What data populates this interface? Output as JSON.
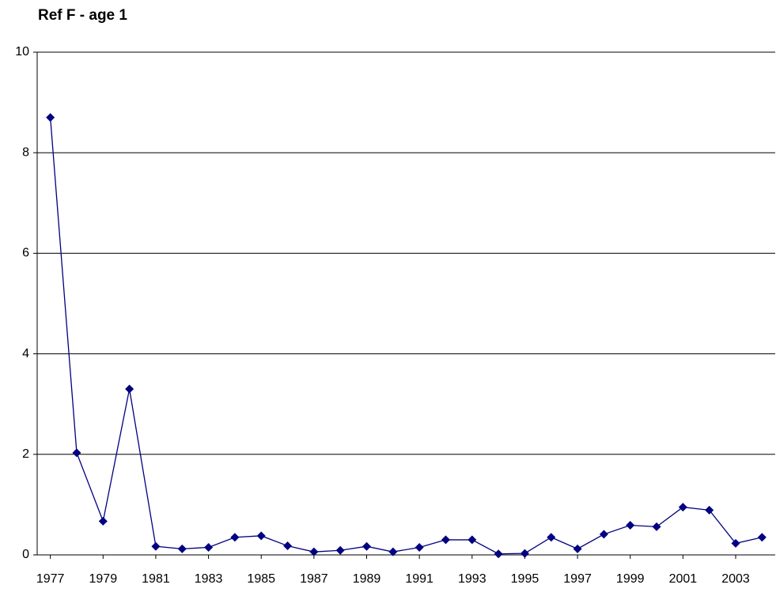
{
  "chart_data": {
    "type": "line",
    "title": "Ref F - age 1",
    "x": [
      1977,
      1978,
      1979,
      1980,
      1981,
      1982,
      1983,
      1984,
      1985,
      1986,
      1987,
      1988,
      1989,
      1990,
      1991,
      1992,
      1993,
      1994,
      1995,
      1996,
      1997,
      1998,
      1999,
      2000,
      2001,
      2002,
      2003,
      2004
    ],
    "series": [
      {
        "color": "#000080",
        "values": [
          8.7,
          2.03,
          0.67,
          3.3,
          0.17,
          0.12,
          0.15,
          0.35,
          0.38,
          0.18,
          0.06,
          0.09,
          0.17,
          0.06,
          0.15,
          0.3,
          0.3,
          0.02,
          0.03,
          0.35,
          0.12,
          0.41,
          0.59,
          0.56,
          0.95,
          0.89,
          0.23,
          0.35
        ]
      }
    ],
    "xlim": [
      1976.5,
      2004.5
    ],
    "xticks": [
      1977,
      1979,
      1981,
      1983,
      1985,
      1987,
      1989,
      1991,
      1993,
      1995,
      1997,
      1999,
      2001,
      2003
    ],
    "ylim": [
      0,
      10
    ],
    "yticks": [
      0,
      2,
      4,
      6,
      8,
      10
    ],
    "grid": true
  }
}
